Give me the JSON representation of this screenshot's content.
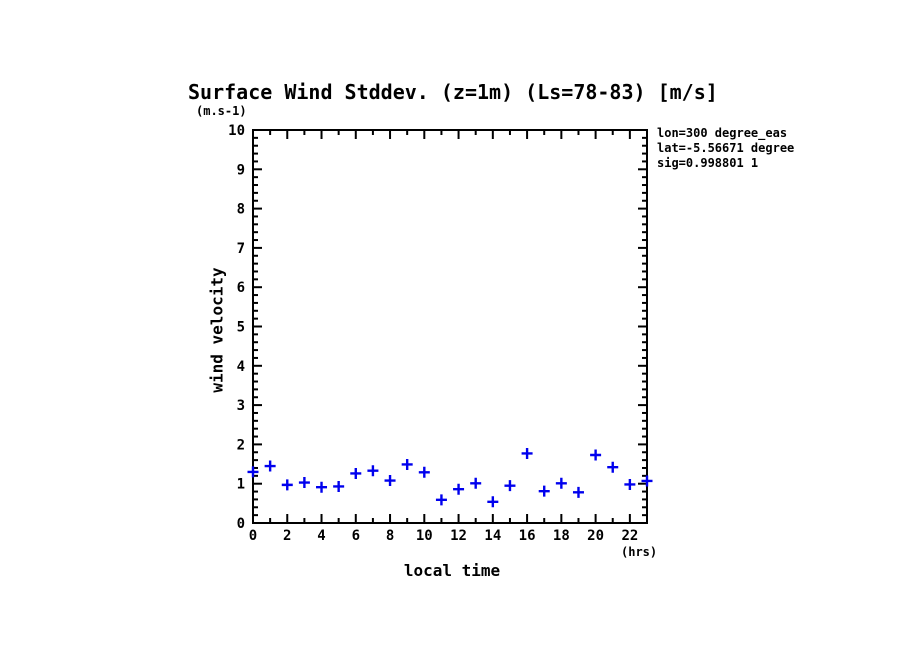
{
  "title": "Surface Wind Stddev. (z=1m) (Ls=78-83) [m/s]",
  "y_axis_unit": "(m.s-1)",
  "x_axis_unit": "(hrs)",
  "x_axis_title": "local time",
  "y_axis_title": "wind velocity",
  "annotations": {
    "lon": "lon=300 degree_eas",
    "lat": "lat=-5.56671 degree",
    "sig": "sig=0.998801 1"
  },
  "colors": {
    "marker": "#0000ee",
    "axis": "#000000",
    "background": "#ffffff"
  },
  "chart_data": {
    "type": "scatter",
    "marker": "plus",
    "title": "Surface Wind Stddev. (z=1m) (Ls=78-83) [m/s]",
    "xlabel": "local time (hrs)",
    "ylabel": "wind velocity (m.s-1)",
    "xlim": [
      0,
      23
    ],
    "ylim": [
      0,
      10
    ],
    "x_major_tick_step": 2,
    "x_minor_tick_step": 1,
    "y_major_tick_step": 1,
    "y_minor_tick_step": 0.2,
    "x_tick_labels": [
      "0",
      "2",
      "4",
      "6",
      "8",
      "10",
      "12",
      "14",
      "16",
      "18",
      "20",
      "22"
    ],
    "y_tick_labels": [
      "0",
      "1",
      "2",
      "3",
      "4",
      "5",
      "6",
      "7",
      "8",
      "9",
      "10"
    ],
    "grid": false,
    "legend": "none",
    "x": [
      0,
      1,
      2,
      3,
      4,
      5,
      6,
      7,
      8,
      9,
      10,
      11,
      12,
      13,
      14,
      15,
      16,
      17,
      18,
      19,
      20,
      21,
      22,
      23
    ],
    "y": [
      1.3,
      1.45,
      0.97,
      1.03,
      0.91,
      0.93,
      1.26,
      1.33,
      1.08,
      1.49,
      1.29,
      0.59,
      0.86,
      1.01,
      0.54,
      0.95,
      1.77,
      0.81,
      1.01,
      0.78,
      1.73,
      1.42,
      0.98,
      1.07
    ]
  }
}
